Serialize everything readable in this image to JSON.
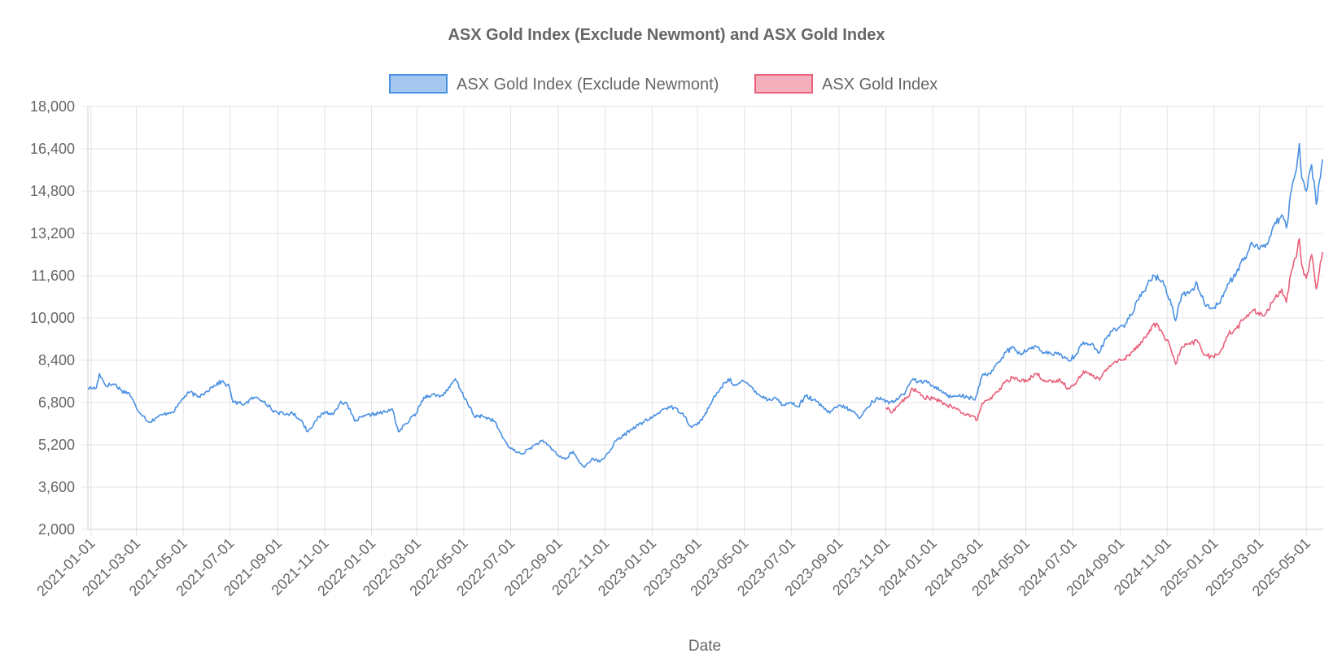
{
  "chart_data": {
    "type": "line",
    "title": "ASX Gold Index (Exclude Newmont) and ASX Gold Index",
    "xlabel": "Date",
    "ylabel": "",
    "ylim": [
      2000,
      18000
    ],
    "yticks": [
      "2,000",
      "3,600",
      "5,200",
      "6,800",
      "8,400",
      "10,000",
      "11,600",
      "13,200",
      "14,800",
      "16,400",
      "18,000"
    ],
    "xticks": [
      "2021-01-01",
      "2021-03-01",
      "2021-05-01",
      "2021-07-01",
      "2021-09-01",
      "2021-11-01",
      "2022-01-01",
      "2022-03-01",
      "2022-05-01",
      "2022-07-01",
      "2022-09-01",
      "2022-11-01",
      "2023-01-01",
      "2023-03-01",
      "2023-05-01",
      "2023-07-01",
      "2023-09-01",
      "2023-11-01",
      "2024-01-01",
      "2024-03-01",
      "2024-05-01",
      "2024-07-01",
      "2024-09-01",
      "2024-11-01",
      "2025-01-01",
      "2025-03-01",
      "2025-05-01"
    ],
    "grid": true,
    "legend_position": "top",
    "series": [
      {
        "name": "ASX Gold Index (Exclude Newmont)",
        "color": "#4a90e2",
        "fill": "#a6c8f0",
        "points": [
          [
            "2020-12-28",
            7350
          ],
          [
            "2021-01-08",
            7350
          ],
          [
            "2021-01-12",
            7900
          ],
          [
            "2021-01-20",
            7450
          ],
          [
            "2021-02-01",
            7500
          ],
          [
            "2021-02-10",
            7250
          ],
          [
            "2021-02-20",
            7150
          ],
          [
            "2021-03-01",
            6600
          ],
          [
            "2021-03-10",
            6300
          ],
          [
            "2021-03-18",
            6050
          ],
          [
            "2021-03-28",
            6250
          ],
          [
            "2021-04-10",
            6400
          ],
          [
            "2021-04-20",
            6500
          ],
          [
            "2021-04-30",
            6950
          ],
          [
            "2021-05-10",
            7200
          ],
          [
            "2021-05-20",
            7000
          ],
          [
            "2021-05-30",
            7200
          ],
          [
            "2021-06-10",
            7450
          ],
          [
            "2021-06-20",
            7600
          ],
          [
            "2021-06-30",
            7400
          ],
          [
            "2021-07-05",
            6800
          ],
          [
            "2021-07-20",
            6750
          ],
          [
            "2021-08-01",
            7000
          ],
          [
            "2021-08-15",
            6850
          ],
          [
            "2021-08-25",
            6500
          ],
          [
            "2021-09-10",
            6350
          ],
          [
            "2021-09-20",
            6400
          ],
          [
            "2021-10-01",
            6150
          ],
          [
            "2021-10-10",
            5700
          ],
          [
            "2021-10-20",
            6100
          ],
          [
            "2021-11-01",
            6450
          ],
          [
            "2021-11-12",
            6350
          ],
          [
            "2021-11-22",
            6850
          ],
          [
            "2021-12-01",
            6700
          ],
          [
            "2021-12-10",
            6100
          ],
          [
            "2021-12-20",
            6250
          ],
          [
            "2022-01-01",
            6350
          ],
          [
            "2022-01-20",
            6450
          ],
          [
            "2022-01-28",
            6550
          ],
          [
            "2022-02-05",
            5700
          ],
          [
            "2022-02-15",
            6000
          ],
          [
            "2022-02-28",
            6400
          ],
          [
            "2022-03-10",
            7000
          ],
          [
            "2022-03-20",
            7100
          ],
          [
            "2022-04-01",
            7050
          ],
          [
            "2022-04-10",
            7250
          ],
          [
            "2022-04-20",
            7700
          ],
          [
            "2022-04-28",
            7200
          ],
          [
            "2022-05-05",
            6850
          ],
          [
            "2022-05-15",
            6250
          ],
          [
            "2022-05-25",
            6300
          ],
          [
            "2022-06-10",
            6100
          ],
          [
            "2022-06-20",
            5500
          ],
          [
            "2022-07-01",
            5050
          ],
          [
            "2022-07-15",
            4850
          ],
          [
            "2022-07-25",
            5050
          ],
          [
            "2022-08-10",
            5350
          ],
          [
            "2022-08-20",
            5150
          ],
          [
            "2022-09-01",
            4800
          ],
          [
            "2022-09-10",
            4650
          ],
          [
            "2022-09-20",
            4950
          ],
          [
            "2022-09-28",
            4550
          ],
          [
            "2022-10-05",
            4350
          ],
          [
            "2022-10-15",
            4700
          ],
          [
            "2022-10-25",
            4550
          ],
          [
            "2022-11-05",
            4900
          ],
          [
            "2022-11-15",
            5350
          ],
          [
            "2022-11-25",
            5550
          ],
          [
            "2022-12-05",
            5800
          ],
          [
            "2022-12-20",
            6050
          ],
          [
            "2023-01-05",
            6300
          ],
          [
            "2023-01-15",
            6550
          ],
          [
            "2023-01-25",
            6650
          ],
          [
            "2023-02-10",
            6400
          ],
          [
            "2023-02-20",
            5900
          ],
          [
            "2023-02-28",
            5950
          ],
          [
            "2023-03-10",
            6300
          ],
          [
            "2023-03-20",
            6850
          ],
          [
            "2023-03-30",
            7300
          ],
          [
            "2023-04-10",
            7700
          ],
          [
            "2023-04-20",
            7450
          ],
          [
            "2023-04-30",
            7600
          ],
          [
            "2023-05-10",
            7400
          ],
          [
            "2023-05-20",
            7100
          ],
          [
            "2023-06-01",
            6900
          ],
          [
            "2023-06-10",
            7000
          ],
          [
            "2023-06-20",
            6700
          ],
          [
            "2023-07-01",
            6800
          ],
          [
            "2023-07-10",
            6650
          ],
          [
            "2023-07-20",
            7050
          ],
          [
            "2023-07-30",
            6900
          ],
          [
            "2023-08-10",
            6650
          ],
          [
            "2023-08-20",
            6400
          ],
          [
            "2023-09-01",
            6700
          ],
          [
            "2023-09-10",
            6600
          ],
          [
            "2023-09-20",
            6450
          ],
          [
            "2023-09-28",
            6200
          ],
          [
            "2023-10-05",
            6500
          ],
          [
            "2023-10-15",
            6850
          ],
          [
            "2023-10-25",
            7000
          ],
          [
            "2023-11-05",
            6750
          ],
          [
            "2023-11-15",
            6950
          ],
          [
            "2023-11-25",
            7100
          ],
          [
            "2023-12-05",
            7650
          ],
          [
            "2023-12-15",
            7600
          ],
          [
            "2023-12-25",
            7550
          ],
          [
            "2024-01-05",
            7400
          ],
          [
            "2024-01-15",
            7200
          ],
          [
            "2024-01-25",
            7000
          ],
          [
            "2024-02-05",
            7100
          ],
          [
            "2024-02-15",
            7000
          ],
          [
            "2024-02-25",
            6900
          ],
          [
            "2024-03-05",
            7800
          ],
          [
            "2024-03-15",
            7900
          ],
          [
            "2024-03-25",
            8300
          ],
          [
            "2024-04-05",
            8700
          ],
          [
            "2024-04-15",
            8900
          ],
          [
            "2024-04-25",
            8600
          ],
          [
            "2024-05-05",
            8850
          ],
          [
            "2024-05-15",
            8900
          ],
          [
            "2024-05-25",
            8700
          ],
          [
            "2024-06-05",
            8600
          ],
          [
            "2024-06-15",
            8650
          ],
          [
            "2024-06-25",
            8400
          ],
          [
            "2024-07-05",
            8600
          ],
          [
            "2024-07-15",
            9100
          ],
          [
            "2024-07-25",
            9000
          ],
          [
            "2024-08-05",
            8700
          ],
          [
            "2024-08-15",
            9300
          ],
          [
            "2024-08-25",
            9600
          ],
          [
            "2024-09-05",
            9700
          ],
          [
            "2024-09-15",
            10100
          ],
          [
            "2024-09-25",
            10700
          ],
          [
            "2024-10-05",
            11200
          ],
          [
            "2024-10-15",
            11600
          ],
          [
            "2024-10-25",
            11400
          ],
          [
            "2024-11-05",
            10700
          ],
          [
            "2024-11-12",
            9900
          ],
          [
            "2024-11-20",
            10900
          ],
          [
            "2024-12-01",
            11000
          ],
          [
            "2024-12-10",
            11300
          ],
          [
            "2024-12-20",
            10500
          ],
          [
            "2025-01-01",
            10400
          ],
          [
            "2025-01-10",
            10700
          ],
          [
            "2025-01-20",
            11300
          ],
          [
            "2025-01-30",
            11700
          ],
          [
            "2025-02-10",
            12300
          ],
          [
            "2025-02-20",
            12800
          ],
          [
            "2025-03-01",
            12600
          ],
          [
            "2025-03-10",
            12800
          ],
          [
            "2025-03-20",
            13500
          ],
          [
            "2025-03-30",
            13900
          ],
          [
            "2025-04-05",
            13400
          ],
          [
            "2025-04-12",
            14900
          ],
          [
            "2025-04-18",
            15600
          ],
          [
            "2025-04-22",
            16600
          ],
          [
            "2025-04-25",
            15300
          ],
          [
            "2025-05-01",
            14800
          ],
          [
            "2025-05-08",
            15800
          ],
          [
            "2025-05-14",
            14300
          ],
          [
            "2025-05-18",
            15200
          ],
          [
            "2025-05-22",
            16000
          ]
        ]
      },
      {
        "name": "ASX Gold Index",
        "color": "#e8607a",
        "fill": "#f4b0bd",
        "points": [
          [
            "2023-11-01",
            6600
          ],
          [
            "2023-11-10",
            6450
          ],
          [
            "2023-11-20",
            6800
          ],
          [
            "2023-11-30",
            7000
          ],
          [
            "2023-12-05",
            7350
          ],
          [
            "2023-12-12",
            7200
          ],
          [
            "2023-12-20",
            7000
          ],
          [
            "2024-01-01",
            6950
          ],
          [
            "2024-01-10",
            6850
          ],
          [
            "2024-01-20",
            6700
          ],
          [
            "2024-02-01",
            6550
          ],
          [
            "2024-02-10",
            6400
          ],
          [
            "2024-02-20",
            6300
          ],
          [
            "2024-02-28",
            6150
          ],
          [
            "2024-03-05",
            6750
          ],
          [
            "2024-03-15",
            6900
          ],
          [
            "2024-03-25",
            7200
          ],
          [
            "2024-04-05",
            7600
          ],
          [
            "2024-04-15",
            7750
          ],
          [
            "2024-04-25",
            7600
          ],
          [
            "2024-05-05",
            7700
          ],
          [
            "2024-05-15",
            7900
          ],
          [
            "2024-05-25",
            7650
          ],
          [
            "2024-06-05",
            7550
          ],
          [
            "2024-06-15",
            7650
          ],
          [
            "2024-06-25",
            7350
          ],
          [
            "2024-07-05",
            7500
          ],
          [
            "2024-07-15",
            8000
          ],
          [
            "2024-07-25",
            7900
          ],
          [
            "2024-08-05",
            7650
          ],
          [
            "2024-08-15",
            8100
          ],
          [
            "2024-08-25",
            8350
          ],
          [
            "2024-09-05",
            8400
          ],
          [
            "2024-09-15",
            8700
          ],
          [
            "2024-09-25",
            9000
          ],
          [
            "2024-10-05",
            9300
          ],
          [
            "2024-10-15",
            9800
          ],
          [
            "2024-10-25",
            9500
          ],
          [
            "2024-11-05",
            8900
          ],
          [
            "2024-11-12",
            8250
          ],
          [
            "2024-11-20",
            8900
          ],
          [
            "2024-12-01",
            9000
          ],
          [
            "2024-12-10",
            9150
          ],
          [
            "2024-12-20",
            8600
          ],
          [
            "2025-01-01",
            8500
          ],
          [
            "2025-01-10",
            8800
          ],
          [
            "2025-01-20",
            9400
          ],
          [
            "2025-01-30",
            9600
          ],
          [
            "2025-02-10",
            10000
          ],
          [
            "2025-02-20",
            10300
          ],
          [
            "2025-03-01",
            10100
          ],
          [
            "2025-03-10",
            10200
          ],
          [
            "2025-03-20",
            10700
          ],
          [
            "2025-03-30",
            11100
          ],
          [
            "2025-04-05",
            10600
          ],
          [
            "2025-04-12",
            11800
          ],
          [
            "2025-04-18",
            12300
          ],
          [
            "2025-04-22",
            13000
          ],
          [
            "2025-04-25",
            12000
          ],
          [
            "2025-05-01",
            11500
          ],
          [
            "2025-05-08",
            12400
          ],
          [
            "2025-05-14",
            11100
          ],
          [
            "2025-05-18",
            11800
          ],
          [
            "2025-05-22",
            12500
          ]
        ]
      }
    ]
  }
}
